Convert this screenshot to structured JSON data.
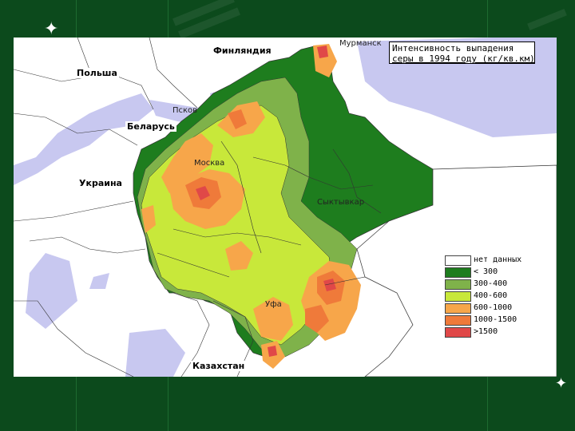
{
  "title": {
    "line1": "Интенсивность выпадения",
    "line2": "серы в 1994 году (кг/кв.км)"
  },
  "countries": {
    "finland": "Финляндия",
    "poland": "Польша",
    "belarus": "Беларусь",
    "ukraine": "Украина",
    "kazakhstan": "Казахстан"
  },
  "cities": {
    "murmansk": "Мурманск",
    "pskov": "Псков",
    "moscow": "Москва",
    "syktyvkar": "Сыктывкар",
    "ufa": "Уфа"
  },
  "legend": [
    {
      "label": "нет данных",
      "color": "#ffffff"
    },
    {
      "label": "< 300",
      "color": "#1e7d1e"
    },
    {
      "label": "300-400",
      "color": "#7fb24a"
    },
    {
      "label": "400-600",
      "color": "#c8e83a"
    },
    {
      "label": "600-1000",
      "color": "#f7a64a"
    },
    {
      "label": "1000-1500",
      "color": "#ef7a3a"
    },
    {
      "label": ">1500",
      "color": "#e04848"
    }
  ],
  "colors": {
    "background": "#0c4a1c",
    "no_data_region": "#ffffff",
    "water": "#c8c8f0",
    "border_lines": "#333333"
  }
}
